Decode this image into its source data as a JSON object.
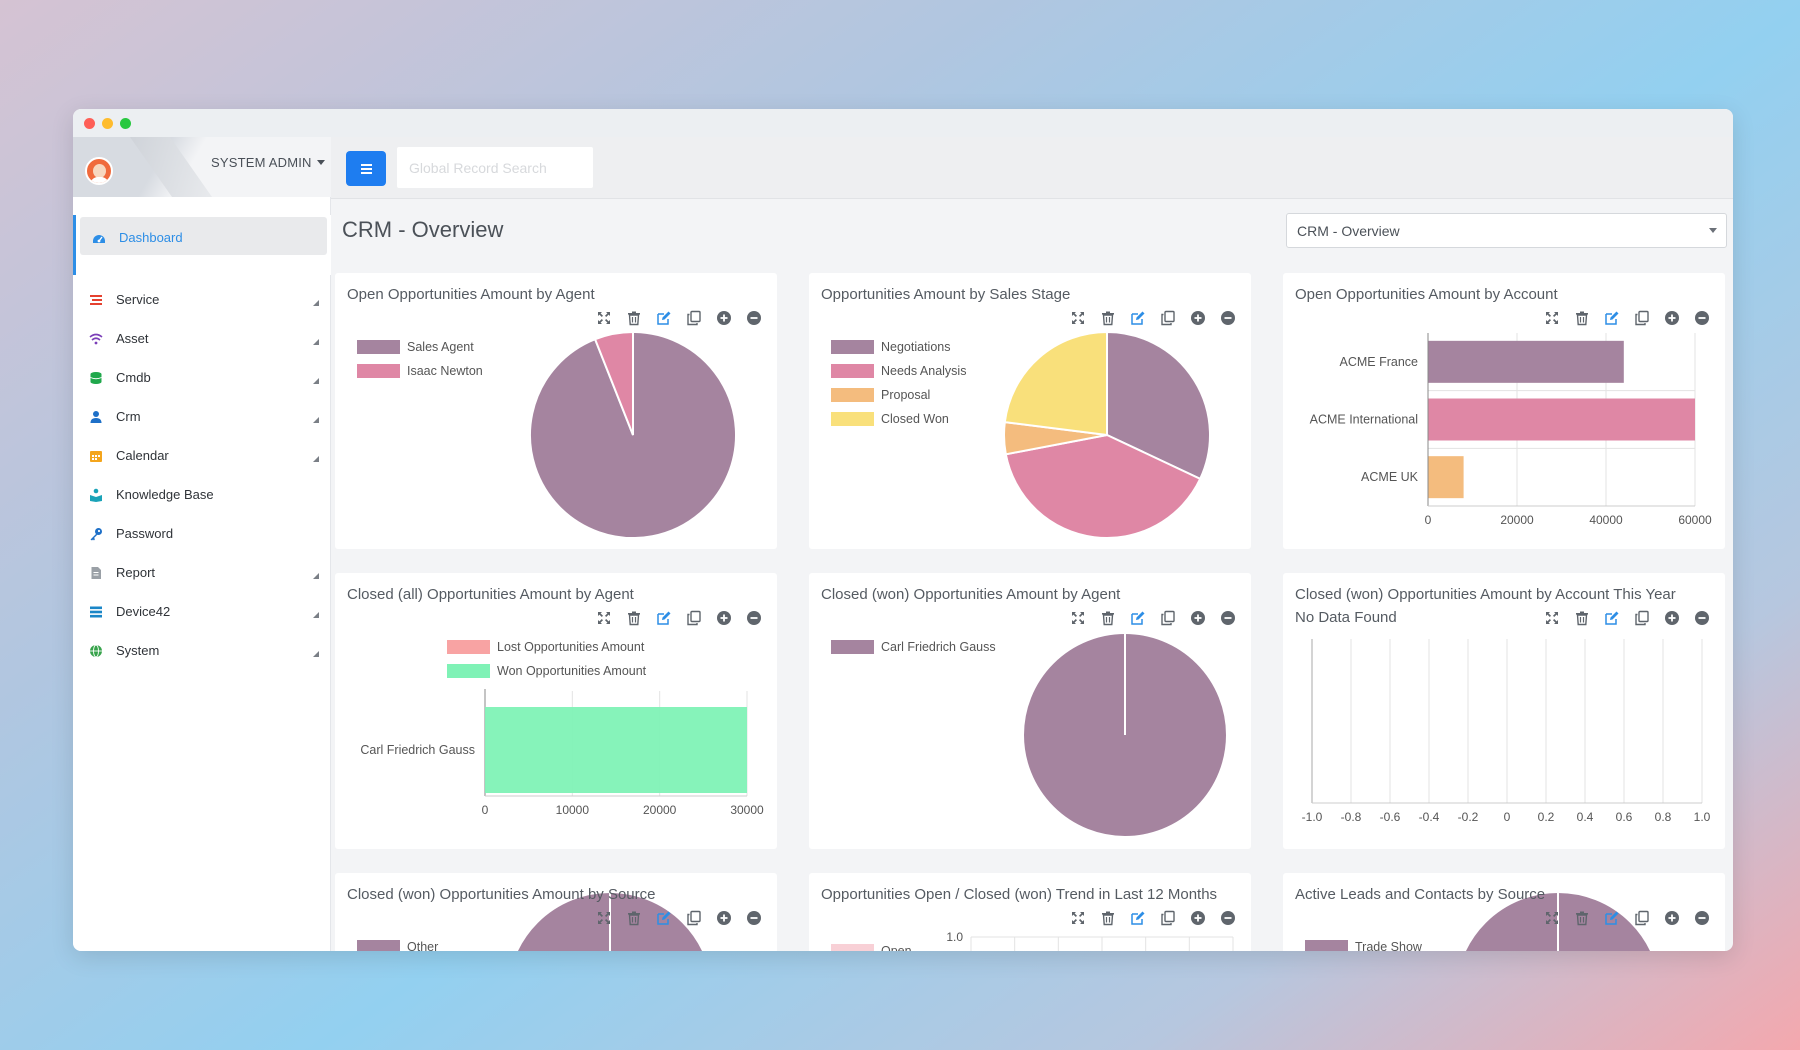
{
  "window": {
    "title": ""
  },
  "user": {
    "name": "SYSTEM ADMIN"
  },
  "topbar": {
    "search_placeholder": "Global Record Search"
  },
  "page": {
    "title": "CRM - Overview",
    "selected_dashboard": "CRM - Overview"
  },
  "colors": {
    "accent": "#1e7df0",
    "mauve": "#a5849f",
    "pink": "#df87a5",
    "orange": "#f4bc7e",
    "yellow": "#f9e07b",
    "green": "#7ff2b6",
    "salmon": "#f8a3a3",
    "active_link": "#2d8ee6"
  },
  "sidebar": {
    "active": {
      "label": "Dashboard",
      "icon": "dashboard-icon"
    },
    "items": [
      {
        "label": "Service",
        "icon": "service-icon",
        "color": "#e5412f",
        "expandable": true
      },
      {
        "label": "Asset",
        "icon": "wifi-icon",
        "color": "#7b3fb8",
        "expandable": true
      },
      {
        "label": "Cmdb",
        "icon": "database-icon",
        "color": "#20a84c",
        "expandable": true
      },
      {
        "label": "Crm",
        "icon": "user-icon",
        "color": "#1e70c8",
        "expandable": true
      },
      {
        "label": "Calendar",
        "icon": "calendar-icon",
        "color": "#f4a51c",
        "expandable": true
      },
      {
        "label": "Knowledge Base",
        "icon": "reader-icon",
        "color": "#1aa3b8",
        "expandable": false
      },
      {
        "label": "Password",
        "icon": "key-icon",
        "color": "#1e70c8",
        "expandable": false
      },
      {
        "label": "Report",
        "icon": "file-icon",
        "color": "#9aa0a6",
        "expandable": true
      },
      {
        "label": "Device42",
        "icon": "list-icon",
        "color": "#1a86c7",
        "expandable": true
      },
      {
        "label": "System",
        "icon": "globe-icon",
        "color": "#37a34b",
        "expandable": true
      }
    ]
  },
  "cards": [
    {
      "title": "Open Opportunities Amount by Agent"
    },
    {
      "title": "Opportunities Amount by Sales Stage"
    },
    {
      "title": "Open Opportunities Amount by Account"
    },
    {
      "title": "Closed (all) Opportunities Amount by Agent"
    },
    {
      "title": "Closed (won) Opportunities Amount by Agent"
    },
    {
      "title": "Closed (won) Opportunities Amount by Account This Year",
      "subtitle": "No Data Found"
    },
    {
      "title": "Closed (won) Opportunities Amount by Source"
    },
    {
      "title": "Opportunities Open / Closed (won) Trend in Last 12 Months"
    },
    {
      "title": "Active Leads and Contacts by Source"
    }
  ],
  "tool_icons": [
    "expand-icon",
    "trash-icon",
    "edit-icon",
    "copy-icon",
    "plus-circle-icon",
    "minus-circle-icon"
  ],
  "chart_data": [
    {
      "type": "pie",
      "categories": [
        "Sales Agent",
        "Isaac Newton"
      ],
      "values": [
        94,
        6
      ],
      "colors": [
        "#a5849f",
        "#df87a5"
      ],
      "legend": "top-left"
    },
    {
      "type": "pie",
      "categories": [
        "Negotiations",
        "Needs Analysis",
        "Proposal",
        "Closed Won"
      ],
      "values": [
        32,
        40,
        5,
        23
      ],
      "colors": [
        "#a5849f",
        "#df87a5",
        "#f4bc7e",
        "#f9e07b"
      ],
      "legend": "top-left"
    },
    {
      "type": "bar",
      "orientation": "horizontal",
      "categories": [
        "ACME France",
        "ACME International",
        "ACME UK"
      ],
      "values": [
        44000,
        60000,
        8000
      ],
      "colors": [
        "#a5849f",
        "#df87a5",
        "#f4bc7e"
      ],
      "xlim": [
        0,
        60000
      ],
      "xticks": [
        "0",
        "20000",
        "40000",
        "60000"
      ],
      "grid": true
    },
    {
      "type": "bar",
      "orientation": "horizontal",
      "categories": [
        "Carl Friedrich Gauss"
      ],
      "series": [
        {
          "name": "Lost Opportunities Amount",
          "values": [
            0
          ],
          "color": "#f8a3a3"
        },
        {
          "name": "Won Opportunities Amount",
          "values": [
            30000
          ],
          "color": "#7ff2b6"
        }
      ],
      "xlim": [
        0,
        30000
      ],
      "xticks": [
        "0",
        "10000",
        "20000",
        "30000"
      ],
      "grid": true,
      "legend": "top"
    },
    {
      "type": "pie",
      "categories": [
        "Carl Friedrich Gauss"
      ],
      "values": [
        100
      ],
      "colors": [
        "#a5849f"
      ],
      "legend": "top-left"
    },
    {
      "type": "bar",
      "orientation": "horizontal",
      "categories": [],
      "values": [],
      "xlim": [
        -1.0,
        1.0
      ],
      "xticks": [
        "-1.0",
        "-0.8",
        "-0.6",
        "-0.4",
        "-0.2",
        "0",
        "0.2",
        "0.4",
        "0.6",
        "0.8",
        "1.0"
      ],
      "grid": true
    },
    {
      "type": "pie",
      "categories": [
        "Other"
      ],
      "values": [
        100
      ],
      "colors": [
        "#a5849f"
      ],
      "legend": "top-left"
    },
    {
      "type": "line",
      "series": [
        {
          "name": "Open",
          "values": [],
          "color": "#f8d0d6"
        }
      ],
      "yticks": [
        "1.0"
      ],
      "legend": "top-left"
    },
    {
      "type": "pie",
      "categories": [
        "Trade Show"
      ],
      "values": [
        100
      ],
      "colors": [
        "#a5849f",
        "#f9e07b"
      ],
      "legend": "top-left"
    }
  ]
}
